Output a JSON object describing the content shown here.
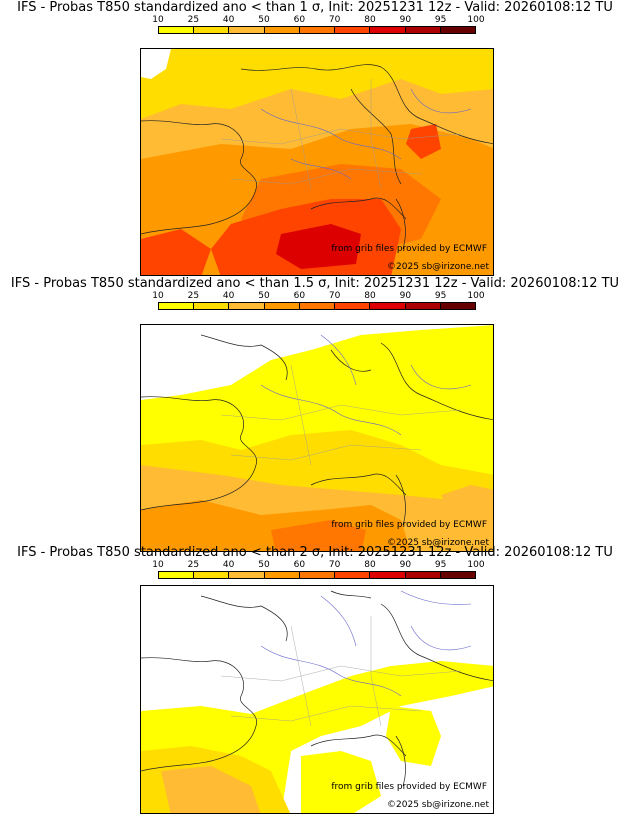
{
  "colorbar": {
    "ticks": [
      "10",
      "25",
      "40",
      "50",
      "60",
      "70",
      "80",
      "90",
      "95",
      "100"
    ],
    "colors": [
      "#ffff00",
      "#ffdd00",
      "#ffbb33",
      "#ff9900",
      "#ff7700",
      "#ff4400",
      "#dd0000",
      "#aa0000",
      "#660000"
    ]
  },
  "panels": [
    {
      "title": "IFS - Probas T850  standardized ano < than 1 σ, Init: 20251231 12z - Valid: 20260108:12 TU",
      "source": "from grib files provided by ECMWF",
      "copyright": "©2025 sb@irizone.net",
      "coverage": "wide"
    },
    {
      "title": "IFS - Probas T850  standardized ano < than 1.5 σ, Init: 20251231 12z - Valid: 20260108:12 TU",
      "source": "from grib files provided by ECMWF",
      "copyright": "©2025 sb@irizone.net",
      "coverage": "medium"
    },
    {
      "title": "IFS - Probas T850  standardized ano < than 2 σ, Init: 20251231 12z - Valid: 20260108:12 TU",
      "source": "from grib files provided by ECMWF",
      "copyright": "©2025 sb@irizone.net",
      "coverage": "narrow"
    }
  ]
}
